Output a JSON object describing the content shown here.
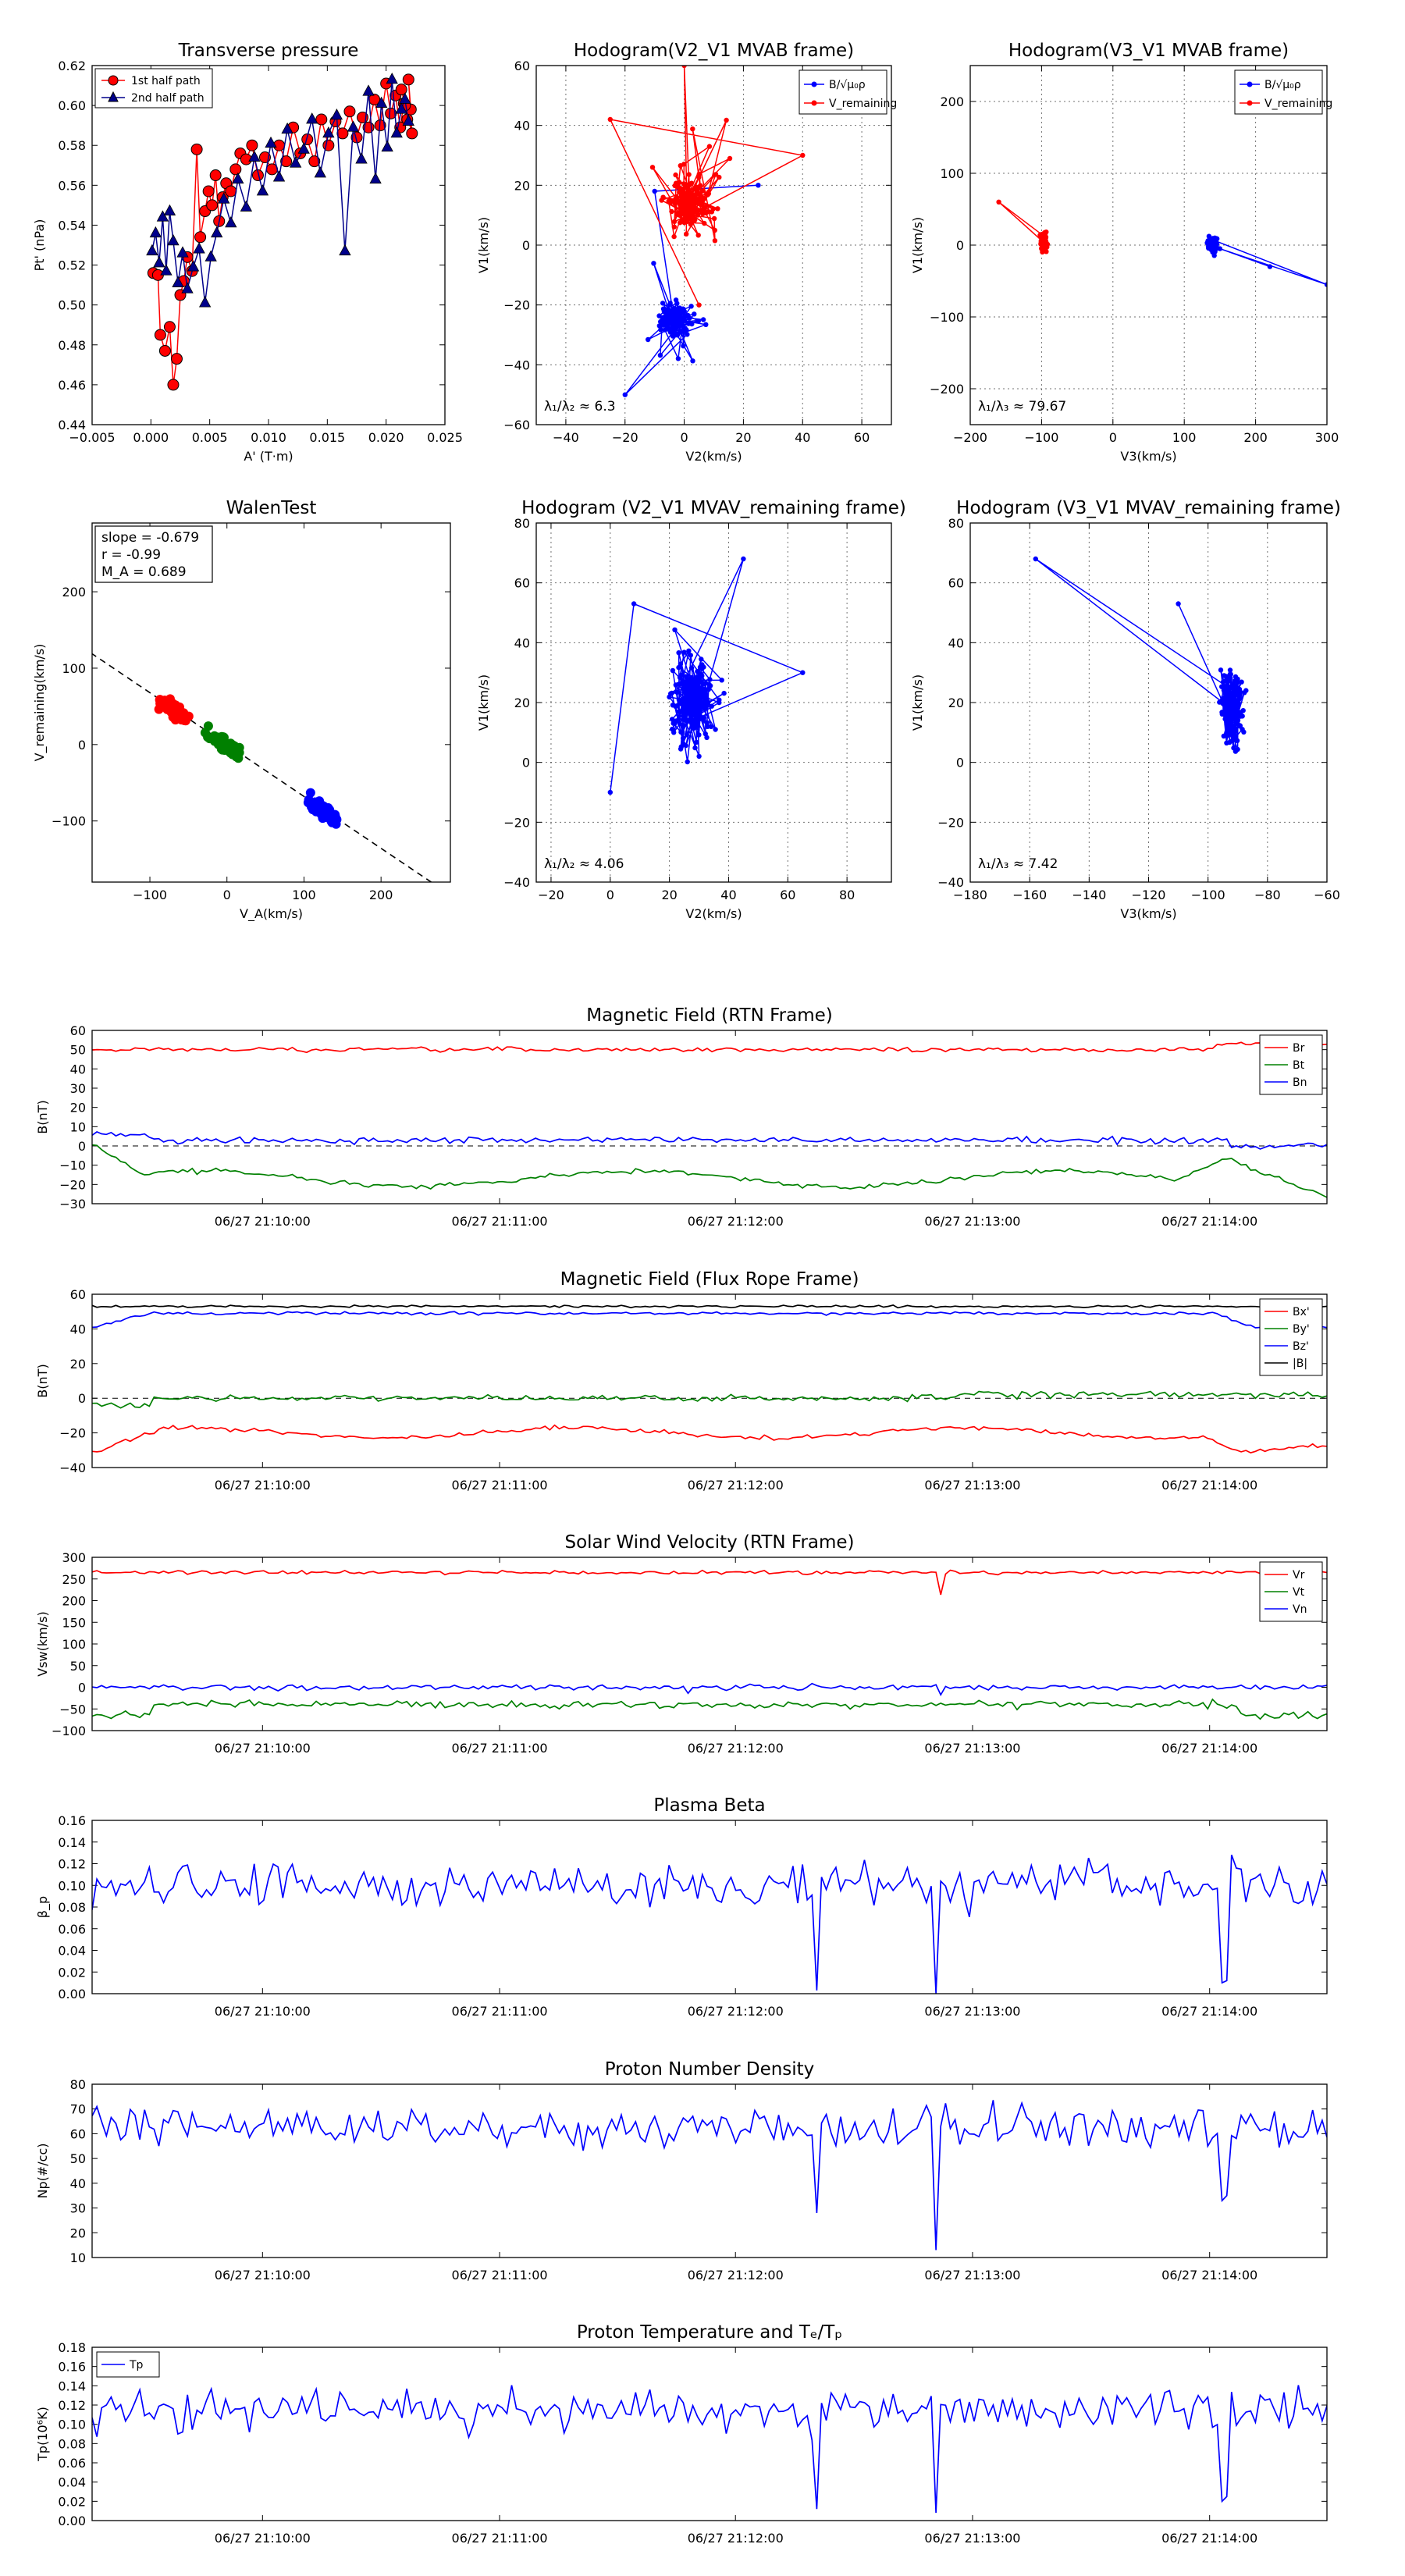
{
  "colors": {
    "red": "#ff0000",
    "blue": "#0000ff",
    "green": "#008000",
    "black": "#000000",
    "navy": "#00008b"
  },
  "chart_data": [
    {
      "id": "tp",
      "type": "scatter",
      "title": "Transverse pressure",
      "xlabel": "A' (T·m)",
      "ylabel": "Pt' (nPa)",
      "xlim": [
        -0.005,
        0.025
      ],
      "ylim": [
        0.44,
        0.62
      ],
      "xticks": [
        -0.005,
        0.0,
        0.005,
        0.01,
        0.015,
        0.02,
        0.025
      ],
      "xtick_labels": [
        "−0.005",
        "0.000",
        "0.005",
        "0.010",
        "0.015",
        "0.020",
        "0.025"
      ],
      "yticks": [
        0.44,
        0.46,
        0.48,
        0.5,
        0.52,
        0.54,
        0.56,
        0.58,
        0.6,
        0.62
      ],
      "ytick_labels": [
        "0.44",
        "0.46",
        "0.48",
        "0.50",
        "0.52",
        "0.54",
        "0.56",
        "0.58",
        "0.60",
        "0.62"
      ],
      "grid": false,
      "legend": "top-left",
      "series": [
        {
          "name": "1st half path",
          "color": "#ff0000",
          "marker": "circle",
          "x": [
            0.0002,
            0.0006,
            0.0008,
            0.0012,
            0.0016,
            0.0019,
            0.0022,
            0.0025,
            0.0028,
            0.0031,
            0.0035,
            0.0039,
            0.0042,
            0.0046,
            0.0049,
            0.0052,
            0.0055,
            0.0058,
            0.0061,
            0.0064,
            0.0068,
            0.0072,
            0.0076,
            0.0081,
            0.0086,
            0.0091,
            0.0097,
            0.0103,
            0.0109,
            0.0115,
            0.0121,
            0.0127,
            0.0133,
            0.0139,
            0.0145,
            0.0151,
            0.0157,
            0.0163,
            0.0169,
            0.0175,
            0.018,
            0.0185,
            0.019,
            0.0195,
            0.02,
            0.0204,
            0.0208,
            0.0212,
            0.0215,
            0.0218,
            0.0221,
            0.0219,
            0.0222,
            0.0216,
            0.0213
          ],
          "y": [
            0.516,
            0.515,
            0.485,
            0.477,
            0.489,
            0.46,
            0.473,
            0.505,
            0.512,
            0.524,
            0.517,
            0.578,
            0.534,
            0.547,
            0.557,
            0.55,
            0.565,
            0.542,
            0.554,
            0.561,
            0.557,
            0.568,
            0.576,
            0.573,
            0.58,
            0.565,
            0.574,
            0.568,
            0.58,
            0.572,
            0.589,
            0.576,
            0.583,
            0.572,
            0.593,
            0.58,
            0.592,
            0.586,
            0.597,
            0.584,
            0.594,
            0.589,
            0.603,
            0.59,
            0.611,
            0.596,
            0.605,
            0.589,
            0.601,
            0.593,
            0.598,
            0.613,
            0.586,
            0.6,
            0.608
          ]
        },
        {
          "name": "2nd half path",
          "color": "#00008b",
          "marker": "triangle",
          "x": [
            0.0001,
            0.0004,
            0.0007,
            0.001,
            0.0013,
            0.0016,
            0.0019,
            0.0023,
            0.0027,
            0.0031,
            0.0036,
            0.0041,
            0.0046,
            0.0051,
            0.0056,
            0.0062,
            0.0068,
            0.0074,
            0.0081,
            0.0088,
            0.0095,
            0.0102,
            0.0109,
            0.0116,
            0.0123,
            0.013,
            0.0137,
            0.0144,
            0.0151,
            0.0158,
            0.0165,
            0.0172,
            0.0179,
            0.0185,
            0.0191,
            0.0196,
            0.0201,
            0.0205,
            0.0209,
            0.0213,
            0.0216,
            0.0219
          ],
          "y": [
            0.527,
            0.536,
            0.521,
            0.544,
            0.517,
            0.547,
            0.532,
            0.511,
            0.526,
            0.508,
            0.519,
            0.528,
            0.501,
            0.524,
            0.536,
            0.553,
            0.541,
            0.563,
            0.549,
            0.574,
            0.557,
            0.581,
            0.564,
            0.588,
            0.571,
            0.578,
            0.593,
            0.566,
            0.586,
            0.595,
            0.527,
            0.589,
            0.573,
            0.607,
            0.563,
            0.601,
            0.579,
            0.613,
            0.586,
            0.598,
            0.603,
            0.592
          ]
        }
      ]
    },
    {
      "id": "h1",
      "type": "line",
      "title": "Hodogram(V2_V1 MVAB frame)",
      "xlabel": "V2(km/s)",
      "ylabel": "V1(km/s)",
      "xlim": [
        -50,
        70
      ],
      "ylim": [
        -60,
        60
      ],
      "xticks": [
        -40,
        -20,
        0,
        20,
        40,
        60
      ],
      "xtick_labels": [
        "−40",
        "−20",
        "0",
        "20",
        "40",
        "60"
      ],
      "yticks": [
        -60,
        -40,
        -20,
        0,
        20,
        40,
        60
      ],
      "ytick_labels": [
        "−60",
        "−40",
        "−20",
        "0",
        "20",
        "40",
        "60"
      ],
      "grid": true,
      "legend": "top-right",
      "annotation": "λ₁/λ₂ ≈ 6.3",
      "series": [
        {
          "name": "B/√μ₀ρ",
          "color": "#0000ff"
        },
        {
          "name": "V_remaining",
          "color": "#ff0000"
        }
      ]
    },
    {
      "id": "h2",
      "type": "line",
      "title": "Hodogram(V3_V1 MVAB frame)",
      "xlabel": "V3(km/s)",
      "ylabel": "V1(km/s)",
      "xlim": [
        -200,
        300
      ],
      "ylim": [
        -250,
        250
      ],
      "xticks": [
        -200,
        -100,
        0,
        100,
        200,
        300
      ],
      "xtick_labels": [
        "−200",
        "−100",
        "0",
        "100",
        "200",
        "300"
      ],
      "yticks": [
        -200,
        -100,
        0,
        100,
        200
      ],
      "ytick_labels": [
        "−200",
        "−100",
        "0",
        "100",
        "200"
      ],
      "grid": true,
      "legend": "top-right",
      "annotation": "λ₁/λ₃ ≈ 79.67",
      "series": [
        {
          "name": "B/√μ₀ρ",
          "color": "#0000ff"
        },
        {
          "name": "V_remaining",
          "color": "#ff0000"
        }
      ]
    },
    {
      "id": "walen",
      "type": "scatter",
      "title": "WalenTest",
      "xlabel": "V_A(km/s)",
      "ylabel": "V_remaining(km/s)",
      "xlim": [
        -175,
        290
      ],
      "ylim": [
        -180,
        290
      ],
      "xticks": [
        -100,
        0,
        100,
        200
      ],
      "xtick_labels": [
        "−100",
        "0",
        "100",
        "200"
      ],
      "yticks": [
        -100,
        0,
        100,
        200
      ],
      "ytick_labels": [
        "−100",
        "0",
        "100",
        "200"
      ],
      "grid": false,
      "info": [
        "slope = -0.679",
        "r = -0.99",
        "M_A = 0.689"
      ],
      "fit_slope": -0.679,
      "clusters": [
        {
          "color": "#ff0000",
          "cx": -70,
          "cy": 45
        },
        {
          "color": "#008000",
          "cx": 0,
          "cy": -2
        },
        {
          "color": "#0000ff",
          "cx": 125,
          "cy": -87
        }
      ]
    },
    {
      "id": "h3",
      "type": "line",
      "title": "Hodogram (V2_V1 MVAV_remaining frame)",
      "xlabel": "V2(km/s)",
      "ylabel": "V1(km/s)",
      "xlim": [
        -25,
        95
      ],
      "ylim": [
        -40,
        80
      ],
      "xticks": [
        -20,
        0,
        20,
        40,
        60,
        80
      ],
      "xtick_labels": [
        "−20",
        "0",
        "20",
        "40",
        "60",
        "80"
      ],
      "yticks": [
        -40,
        -20,
        0,
        20,
        40,
        60,
        80
      ],
      "ytick_labels": [
        "−40",
        "−20",
        "0",
        "20",
        "40",
        "60",
        "80"
      ],
      "grid": true,
      "annotation": "λ₁/λ₂ ≈ 4.06"
    },
    {
      "id": "h4",
      "type": "line",
      "title": "Hodogram (V3_V1 MVAV_remaining frame)",
      "xlabel": "V3(km/s)",
      "ylabel": "V1(km/s)",
      "xlim": [
        -180,
        -60
      ],
      "ylim": [
        -40,
        80
      ],
      "xticks": [
        -180,
        -160,
        -140,
        -120,
        -100,
        -80,
        -60
      ],
      "xtick_labels": [
        "−180",
        "−160",
        "−140",
        "−120",
        "−100",
        "−80",
        "−60"
      ],
      "yticks": [
        -40,
        -20,
        0,
        20,
        40,
        60,
        80
      ],
      "ytick_labels": [
        "−40",
        "−20",
        "0",
        "20",
        "40",
        "60",
        "80"
      ],
      "grid": true,
      "annotation": "λ₁/λ₃ ≈ 7.42"
    },
    {
      "id": "ts_mag",
      "type": "line",
      "title": "Magnetic Field (RTN Frame)",
      "ylabel": "B(nT)",
      "ylim": [
        -30,
        60
      ],
      "yticks": [
        -30,
        -20,
        -10,
        0,
        10,
        20,
        30,
        40,
        50,
        60
      ],
      "ytick_labels": [
        "−30",
        "−20",
        "−10",
        "0",
        "10",
        "20",
        "30",
        "40",
        "50",
        "60"
      ],
      "xtick_labels": [
        "06/27 21:10:00",
        "06/27 21:11:00",
        "06/27 21:12:00",
        "06/27 21:13:00",
        "06/27 21:14:00"
      ],
      "zero_line": true,
      "legend": "top-right",
      "series": [
        {
          "name": "Br",
          "color": "#ff0000",
          "base": 50
        },
        {
          "name": "Bt",
          "color": "#008000",
          "base": -17
        },
        {
          "name": "Bn",
          "color": "#0000ff",
          "base": 3
        }
      ]
    },
    {
      "id": "ts_fr",
      "type": "line",
      "title": "Magnetic Field (Flux Rope Frame)",
      "ylabel": "B(nT)",
      "ylim": [
        -40,
        60
      ],
      "yticks": [
        -40,
        -20,
        0,
        20,
        40,
        60
      ],
      "ytick_labels": [
        "−40",
        "−20",
        "0",
        "20",
        "40",
        "60"
      ],
      "xtick_labels": [
        "06/27 21:10:00",
        "06/27 21:11:00",
        "06/27 21:12:00",
        "06/27 21:13:00",
        "06/27 21:14:00"
      ],
      "zero_line": true,
      "legend": "top-right",
      "series": [
        {
          "name": "Bx'",
          "color": "#ff0000",
          "base": -20
        },
        {
          "name": "By'",
          "color": "#008000",
          "base": 0
        },
        {
          "name": "Bz'",
          "color": "#0000ff",
          "base": 49
        },
        {
          "name": "|B|",
          "color": "#000000",
          "base": 53
        }
      ]
    },
    {
      "id": "ts_vel",
      "type": "line",
      "title": "Solar Wind Velocity (RTN Frame)",
      "ylabel": "Vsw(km/s)",
      "ylim": [
        -100,
        300
      ],
      "yticks": [
        -100,
        -50,
        0,
        50,
        100,
        150,
        200,
        250,
        300
      ],
      "ytick_labels": [
        "−100",
        "−50",
        "0",
        "50",
        "100",
        "150",
        "200",
        "250",
        "300"
      ],
      "xtick_labels": [
        "06/27 21:10:00",
        "06/27 21:11:00",
        "06/27 21:12:00",
        "06/27 21:13:00",
        "06/27 21:14:00"
      ],
      "zero_line": false,
      "legend": "top-right",
      "series": [
        {
          "name": "Vr",
          "color": "#ff0000",
          "base": 265
        },
        {
          "name": "Vt",
          "color": "#008000",
          "base": -40
        },
        {
          "name": "Vn",
          "color": "#0000ff",
          "base": 0
        }
      ]
    },
    {
      "id": "ts_beta",
      "type": "line",
      "title": "Plasma Beta",
      "ylabel": "β_p",
      "ylim": [
        0.0,
        0.16
      ],
      "yticks": [
        0.0,
        0.02,
        0.04,
        0.06,
        0.08,
        0.1,
        0.12,
        0.14,
        0.16
      ],
      "ytick_labels": [
        "0.00",
        "0.02",
        "0.04",
        "0.06",
        "0.08",
        "0.10",
        "0.12",
        "0.14",
        "0.16"
      ],
      "xtick_labels": [
        "06/27 21:10:00",
        "06/27 21:11:00",
        "06/27 21:12:00",
        "06/27 21:13:00",
        "06/27 21:14:00"
      ],
      "series": [
        {
          "name": "β",
          "color": "#0000ff",
          "base": 0.1
        }
      ]
    },
    {
      "id": "ts_np",
      "type": "line",
      "title": "Proton Number Density",
      "ylabel": "Np(#/cc)",
      "ylim": [
        10,
        80
      ],
      "yticks": [
        10,
        20,
        30,
        40,
        50,
        60,
        70,
        80
      ],
      "ytick_labels": [
        "10",
        "20",
        "30",
        "40",
        "50",
        "60",
        "70",
        "80"
      ],
      "xtick_labels": [
        "06/27 21:10:00",
        "06/27 21:11:00",
        "06/27 21:12:00",
        "06/27 21:13:00",
        "06/27 21:14:00"
      ],
      "series": [
        {
          "name": "Np",
          "color": "#0000ff",
          "base": 63
        }
      ]
    },
    {
      "id": "ts_tp",
      "type": "line",
      "title": "Proton Temperature and Tₑ/Tₚ",
      "ylabel": "Tp(10⁶K)",
      "ylim": [
        0.0,
        0.18
      ],
      "yticks": [
        0.0,
        0.02,
        0.04,
        0.06,
        0.08,
        0.1,
        0.12,
        0.14,
        0.16,
        0.18
      ],
      "ytick_labels": [
        "0.00",
        "0.02",
        "0.04",
        "0.06",
        "0.08",
        "0.10",
        "0.12",
        "0.14",
        "0.16",
        "0.18"
      ],
      "xtick_labels": [
        "06/27 21:10:00",
        "06/27 21:11:00",
        "06/27 21:12:00",
        "06/27 21:13:00",
        "06/27 21:14:00"
      ],
      "legend": "top-left",
      "series": [
        {
          "name": "Tp",
          "color": "#0000ff",
          "base": 0.115
        }
      ]
    }
  ]
}
